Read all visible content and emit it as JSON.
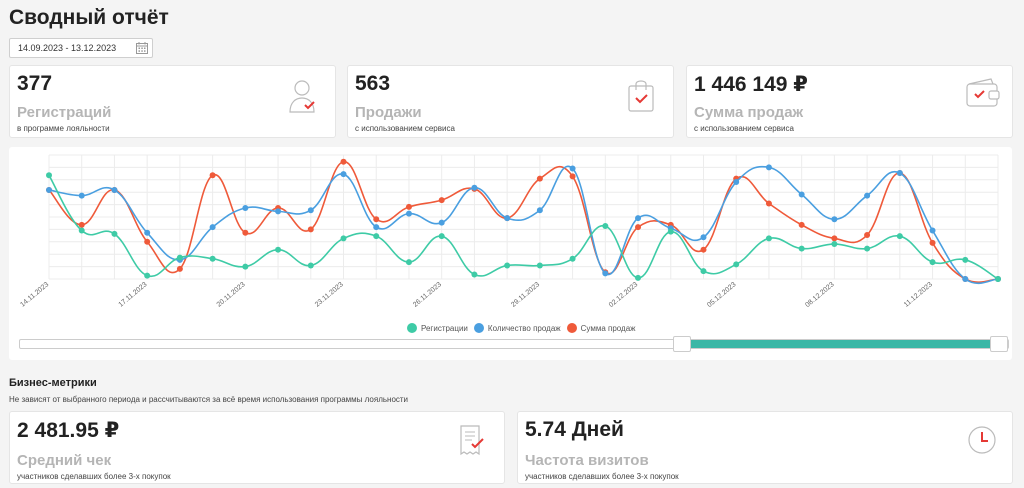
{
  "page": {
    "title": "Сводный отчёт"
  },
  "date_range": {
    "value": "14.09.2023 - 13.12.2023"
  },
  "kpis": [
    {
      "value": "377",
      "label": "Регистраций",
      "sub": "в программе лояльности",
      "icon": "user-check-icon"
    },
    {
      "value": "563",
      "label": "Продажи",
      "sub": "с использованием сервиса",
      "icon": "shopping-bag-icon"
    },
    {
      "value": "1 446 149 ₽",
      "label": "Сумма продаж",
      "sub": "с использованием сервиса",
      "icon": "wallet-icon"
    }
  ],
  "business": {
    "title": "Бизнес-метрики",
    "subtitle": "Не зависят от выбранного периода и рассчитываются за всё время использования программы лояльности",
    "cards": [
      {
        "value": "2 481.95 ₽",
        "label": "Средний чек",
        "sub": "участников сделавших более 3-х покупок",
        "icon": "receipt-icon"
      },
      {
        "value": "5.74 Дней",
        "label": "Частота визитов",
        "sub": "участников сделавших более 3-х покупок",
        "icon": "clock-icon"
      }
    ]
  },
  "chart_data": {
    "type": "line",
    "x_tick_labels": [
      "14.11.2023",
      "17.11.2023",
      "20.11.2023",
      "23.11.2023",
      "26.11.2023",
      "29.11.2023",
      "02.12.2023",
      "05.12.2023",
      "08.12.2023",
      "11.12.2023"
    ],
    "points_per_series": 30,
    "grid": true,
    "legend_position": "bottom",
    "range_slider": {
      "start_fraction": 0.67,
      "end_fraction": 1.0
    },
    "series": [
      {
        "name": "Регистрации",
        "color": "#3ecba6",
        "values": [
          92,
          43,
          40,
          3,
          19,
          18,
          11,
          26,
          12,
          36,
          38,
          15,
          38,
          4,
          12,
          12,
          18,
          47,
          1,
          42,
          7,
          13,
          36,
          27,
          31,
          27,
          38,
          15,
          17,
          0
        ]
      },
      {
        "name": "Количество продаж",
        "color": "#4a9fe0",
        "values": [
          79,
          74,
          79,
          41,
          17,
          46,
          63,
          60,
          61,
          93,
          46,
          58,
          50,
          81,
          54,
          61,
          98,
          5,
          54,
          45,
          37,
          86,
          99,
          75,
          53,
          74,
          94,
          43,
          0,
          0
        ]
      },
      {
        "name": "Сумма продаж",
        "color": "#ef5a3a",
        "values": [
          79,
          48,
          79,
          33,
          9,
          92,
          41,
          63,
          44,
          104,
          53,
          64,
          70,
          80,
          54,
          89,
          91,
          6,
          46,
          48,
          26,
          89,
          67,
          48,
          36,
          39,
          94,
          32,
          0,
          0
        ]
      }
    ]
  }
}
